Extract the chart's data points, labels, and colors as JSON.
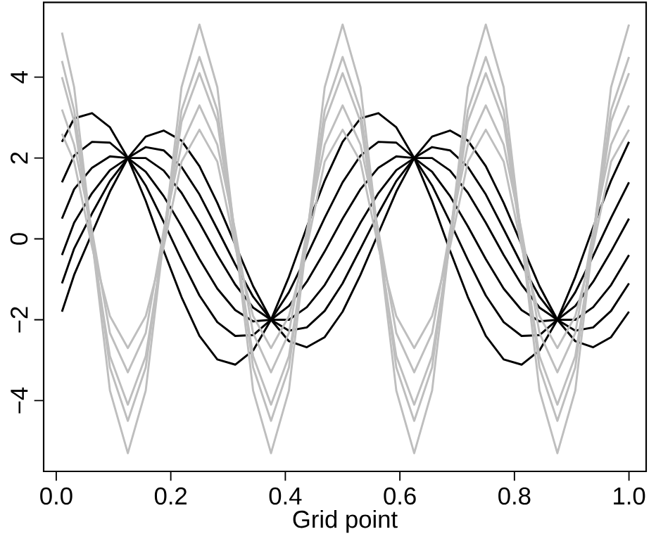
{
  "chart_data": {
    "type": "line",
    "xlabel": "Grid point",
    "x": [
      0.01,
      0.03125,
      0.0625,
      0.09375,
      0.125,
      0.15625,
      0.1875,
      0.21875,
      0.25,
      0.28125,
      0.3125,
      0.34375,
      0.375,
      0.40625,
      0.4375,
      0.46875,
      0.5,
      0.53125,
      0.5625,
      0.59375,
      0.625,
      0.65625,
      0.6875,
      0.71875,
      0.75,
      0.78125,
      0.8125,
      0.84375,
      0.875,
      0.90625,
      0.9375,
      0.96875,
      1.0
    ],
    "series": [
      {
        "color": "#000000",
        "values": [
          2.4,
          2.98,
          3.11,
          2.76,
          2,
          0.94,
          -0.29,
          -1.44,
          -2.4,
          -2.98,
          -3.11,
          -2.76,
          -2,
          -0.94,
          0.29,
          1.44,
          2.4,
          2.98,
          3.11,
          2.76,
          2,
          0.94,
          -0.29,
          -1.44,
          -2.4,
          -2.98,
          -3.11,
          -2.76,
          -2,
          -0.94,
          0.29,
          1.44,
          2.4
        ]
      },
      {
        "color": "#000000",
        "values": [
          1.4,
          2.06,
          2.4,
          2.38,
          2,
          1.32,
          0.42,
          -0.52,
          -1.4,
          -2.06,
          -2.4,
          -2.38,
          -2,
          -1.32,
          -0.42,
          0.52,
          1.4,
          2.06,
          2.4,
          2.38,
          2,
          1.32,
          0.42,
          -0.52,
          -1.4,
          -2.06,
          -2.4,
          -2.38,
          -2,
          -1.32,
          -0.42,
          0.52,
          1.4
        ]
      },
      {
        "color": "#000000",
        "values": [
          0.5,
          1.23,
          1.76,
          2.04,
          2,
          1.66,
          1.06,
          0.31,
          -0.5,
          -1.23,
          -1.76,
          -2.04,
          -2,
          -1.66,
          -1.06,
          -0.31,
          0.5,
          1.23,
          1.76,
          2.04,
          2,
          1.66,
          1.06,
          0.31,
          -0.5,
          -1.23,
          -1.76,
          -2.04,
          -2,
          -1.66,
          -1.06,
          -0.31,
          0.5
        ]
      },
      {
        "color": "#000000",
        "values": [
          -0.4,
          0.4,
          1.13,
          1.7,
          2,
          2.0,
          1.69,
          1.14,
          0.4,
          -0.4,
          -1.13,
          -1.7,
          -2,
          -2.0,
          -1.69,
          -1.14,
          -0.4,
          0.4,
          1.13,
          1.7,
          2,
          2.0,
          1.69,
          1.14,
          0.4,
          -0.4,
          -1.13,
          -1.7,
          -2,
          -2.0,
          -1.69,
          -1.14,
          -0.4
        ]
      },
      {
        "color": "#000000",
        "values": [
          -1.1,
          -0.24,
          0.63,
          1.43,
          2,
          2.27,
          2.19,
          1.78,
          1.1,
          0.24,
          -0.63,
          -1.43,
          -2,
          -2.27,
          -2.19,
          -1.78,
          -1.1,
          -0.24,
          0.63,
          1.43,
          2,
          2.27,
          2.19,
          1.78,
          1.1,
          0.24,
          -0.63,
          -1.43,
          -2,
          -2.27,
          -2.19,
          -1.78,
          -1.1
        ]
      },
      {
        "color": "#000000",
        "values": [
          -1.8,
          -0.89,
          0.14,
          1.17,
          2,
          2.53,
          2.68,
          2.43,
          1.8,
          0.89,
          -0.14,
          -1.17,
          -2,
          -2.53,
          -2.68,
          -2.43,
          -1.8,
          -0.89,
          0.14,
          1.17,
          2,
          2.53,
          2.68,
          2.43,
          1.8,
          0.89,
          -0.14,
          -1.17,
          -2,
          -2.53,
          -2.68,
          -2.43,
          -1.8
        ]
      },
      {
        "color": "#bebebe",
        "values": [
          5.1,
          3.75,
          0,
          -3.75,
          -5.3,
          -3.75,
          0,
          3.75,
          5.3,
          3.75,
          0,
          -3.75,
          -5.3,
          -3.75,
          0,
          3.75,
          5.3,
          3.75,
          0,
          -3.75,
          -5.3,
          -3.75,
          0,
          3.75,
          5.3,
          3.75,
          0,
          -3.75,
          -5.3,
          -3.75,
          0,
          3.75,
          5.3
        ]
      },
      {
        "color": "#bebebe",
        "values": [
          4.4,
          3.18,
          0.1,
          -3.18,
          -4.5,
          -3.18,
          0.1,
          3.18,
          4.5,
          3.18,
          0.1,
          -3.18,
          -4.5,
          -3.18,
          0.1,
          3.18,
          4.5,
          3.18,
          0.1,
          -3.18,
          -4.5,
          -3.18,
          0.1,
          3.18,
          4.5,
          3.18,
          0.1,
          -3.18,
          -4.5,
          -3.18,
          0.1,
          3.18,
          4.5
        ]
      },
      {
        "color": "#bebebe",
        "values": [
          4.0,
          2.9,
          -0.1,
          -2.9,
          -4.1,
          -2.9,
          -0.1,
          2.9,
          4.1,
          2.9,
          -0.1,
          -2.9,
          -4.1,
          -2.9,
          -0.1,
          2.9,
          4.1,
          2.9,
          -0.1,
          -2.9,
          -4.1,
          -2.9,
          -0.1,
          2.9,
          4.1,
          2.9,
          -0.1,
          -2.9,
          -4.1,
          -2.9,
          -0.1,
          2.9,
          4.1
        ]
      },
      {
        "color": "#bebebe",
        "values": [
          3.2,
          2.33,
          0.2,
          -2.33,
          -3.3,
          -2.33,
          0.2,
          2.33,
          3.3,
          2.33,
          0.2,
          -2.33,
          -3.3,
          -2.33,
          0.2,
          2.33,
          3.3,
          2.33,
          0.2,
          -2.33,
          -3.3,
          -2.33,
          0.2,
          2.33,
          3.3,
          2.33,
          0.2,
          -2.33,
          -3.3,
          -2.33,
          0.2,
          2.33,
          3.3
        ]
      },
      {
        "color": "#bebebe",
        "values": [
          2.6,
          1.91,
          -0.2,
          -1.91,
          -2.7,
          -1.91,
          -0.2,
          1.91,
          2.7,
          1.91,
          -0.2,
          -1.91,
          -2.7,
          -1.91,
          -0.2,
          1.91,
          2.7,
          1.91,
          -0.2,
          -1.91,
          -2.7,
          -1.91,
          -0.2,
          1.91,
          2.7,
          1.91,
          -0.2,
          -1.91,
          -2.7,
          -1.91,
          -0.2,
          1.91,
          2.7
        ]
      }
    ],
    "xlim": [
      -0.022,
      1.03
    ],
    "ylim": [
      -5.75,
      5.85
    ],
    "xticks": [
      {
        "value": 0,
        "label": "0.0"
      },
      0.2,
      0.4,
      0.6,
      0.8,
      {
        "value": 1,
        "label": "1.0"
      }
    ],
    "yticks": [
      {
        "value": -4,
        "label": "−4"
      },
      {
        "value": -2,
        "label": "−2"
      },
      0,
      2,
      4
    ],
    "grid": false,
    "marker": "none",
    "line_style": "solid"
  }
}
